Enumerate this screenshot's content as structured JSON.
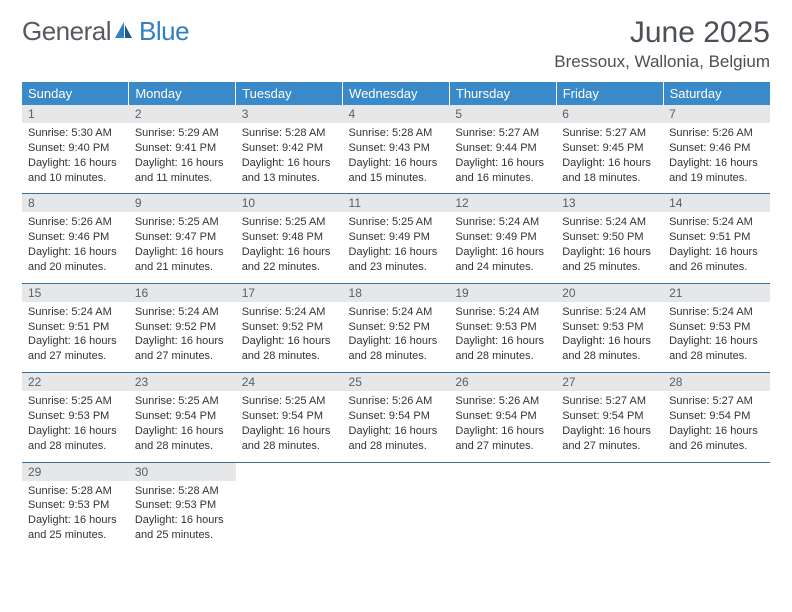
{
  "logo": {
    "general": "General",
    "blue": "Blue"
  },
  "title": "June 2025",
  "location": "Bressoux, Wallonia, Belgium",
  "colors": {
    "header_bg": "#3a89c9",
    "header_fg": "#ffffff",
    "daynum_bg": "#e5e7e8",
    "border": "#3a6f9a",
    "text": "#333333",
    "title_color": "#4a5056"
  },
  "weekdays": [
    "Sunday",
    "Monday",
    "Tuesday",
    "Wednesday",
    "Thursday",
    "Friday",
    "Saturday"
  ],
  "days": [
    {
      "n": "1",
      "sr": "5:30 AM",
      "ss": "9:40 PM",
      "d1": "Daylight: 16 hours",
      "d2": "and 10 minutes."
    },
    {
      "n": "2",
      "sr": "5:29 AM",
      "ss": "9:41 PM",
      "d1": "Daylight: 16 hours",
      "d2": "and 11 minutes."
    },
    {
      "n": "3",
      "sr": "5:28 AM",
      "ss": "9:42 PM",
      "d1": "Daylight: 16 hours",
      "d2": "and 13 minutes."
    },
    {
      "n": "4",
      "sr": "5:28 AM",
      "ss": "9:43 PM",
      "d1": "Daylight: 16 hours",
      "d2": "and 15 minutes."
    },
    {
      "n": "5",
      "sr": "5:27 AM",
      "ss": "9:44 PM",
      "d1": "Daylight: 16 hours",
      "d2": "and 16 minutes."
    },
    {
      "n": "6",
      "sr": "5:27 AM",
      "ss": "9:45 PM",
      "d1": "Daylight: 16 hours",
      "d2": "and 18 minutes."
    },
    {
      "n": "7",
      "sr": "5:26 AM",
      "ss": "9:46 PM",
      "d1": "Daylight: 16 hours",
      "d2": "and 19 minutes."
    },
    {
      "n": "8",
      "sr": "5:26 AM",
      "ss": "9:46 PM",
      "d1": "Daylight: 16 hours",
      "d2": "and 20 minutes."
    },
    {
      "n": "9",
      "sr": "5:25 AM",
      "ss": "9:47 PM",
      "d1": "Daylight: 16 hours",
      "d2": "and 21 minutes."
    },
    {
      "n": "10",
      "sr": "5:25 AM",
      "ss": "9:48 PM",
      "d1": "Daylight: 16 hours",
      "d2": "and 22 minutes."
    },
    {
      "n": "11",
      "sr": "5:25 AM",
      "ss": "9:49 PM",
      "d1": "Daylight: 16 hours",
      "d2": "and 23 minutes."
    },
    {
      "n": "12",
      "sr": "5:24 AM",
      "ss": "9:49 PM",
      "d1": "Daylight: 16 hours",
      "d2": "and 24 minutes."
    },
    {
      "n": "13",
      "sr": "5:24 AM",
      "ss": "9:50 PM",
      "d1": "Daylight: 16 hours",
      "d2": "and 25 minutes."
    },
    {
      "n": "14",
      "sr": "5:24 AM",
      "ss": "9:51 PM",
      "d1": "Daylight: 16 hours",
      "d2": "and 26 minutes."
    },
    {
      "n": "15",
      "sr": "5:24 AM",
      "ss": "9:51 PM",
      "d1": "Daylight: 16 hours",
      "d2": "and 27 minutes."
    },
    {
      "n": "16",
      "sr": "5:24 AM",
      "ss": "9:52 PM",
      "d1": "Daylight: 16 hours",
      "d2": "and 27 minutes."
    },
    {
      "n": "17",
      "sr": "5:24 AM",
      "ss": "9:52 PM",
      "d1": "Daylight: 16 hours",
      "d2": "and 28 minutes."
    },
    {
      "n": "18",
      "sr": "5:24 AM",
      "ss": "9:52 PM",
      "d1": "Daylight: 16 hours",
      "d2": "and 28 minutes."
    },
    {
      "n": "19",
      "sr": "5:24 AM",
      "ss": "9:53 PM",
      "d1": "Daylight: 16 hours",
      "d2": "and 28 minutes."
    },
    {
      "n": "20",
      "sr": "5:24 AM",
      "ss": "9:53 PM",
      "d1": "Daylight: 16 hours",
      "d2": "and 28 minutes."
    },
    {
      "n": "21",
      "sr": "5:24 AM",
      "ss": "9:53 PM",
      "d1": "Daylight: 16 hours",
      "d2": "and 28 minutes."
    },
    {
      "n": "22",
      "sr": "5:25 AM",
      "ss": "9:53 PM",
      "d1": "Daylight: 16 hours",
      "d2": "and 28 minutes."
    },
    {
      "n": "23",
      "sr": "5:25 AM",
      "ss": "9:54 PM",
      "d1": "Daylight: 16 hours",
      "d2": "and 28 minutes."
    },
    {
      "n": "24",
      "sr": "5:25 AM",
      "ss": "9:54 PM",
      "d1": "Daylight: 16 hours",
      "d2": "and 28 minutes."
    },
    {
      "n": "25",
      "sr": "5:26 AM",
      "ss": "9:54 PM",
      "d1": "Daylight: 16 hours",
      "d2": "and 28 minutes."
    },
    {
      "n": "26",
      "sr": "5:26 AM",
      "ss": "9:54 PM",
      "d1": "Daylight: 16 hours",
      "d2": "and 27 minutes."
    },
    {
      "n": "27",
      "sr": "5:27 AM",
      "ss": "9:54 PM",
      "d1": "Daylight: 16 hours",
      "d2": "and 27 minutes."
    },
    {
      "n": "28",
      "sr": "5:27 AM",
      "ss": "9:54 PM",
      "d1": "Daylight: 16 hours",
      "d2": "and 26 minutes."
    },
    {
      "n": "29",
      "sr": "5:28 AM",
      "ss": "9:53 PM",
      "d1": "Daylight: 16 hours",
      "d2": "and 25 minutes."
    },
    {
      "n": "30",
      "sr": "5:28 AM",
      "ss": "9:53 PM",
      "d1": "Daylight: 16 hours",
      "d2": "and 25 minutes."
    }
  ],
  "labels": {
    "sunrise": "Sunrise: ",
    "sunset": "Sunset: "
  }
}
